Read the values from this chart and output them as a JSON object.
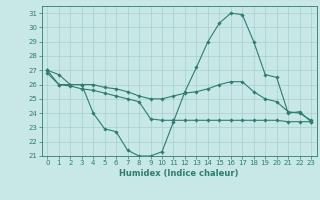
{
  "x": [
    0,
    1,
    2,
    3,
    4,
    5,
    6,
    7,
    8,
    9,
    10,
    11,
    12,
    13,
    14,
    15,
    16,
    17,
    18,
    19,
    20,
    21,
    22,
    23
  ],
  "line1": [
    27.0,
    26.7,
    26.0,
    26.0,
    24.0,
    22.9,
    22.7,
    21.4,
    21.0,
    21.0,
    21.3,
    23.4,
    25.5,
    27.2,
    29.0,
    30.3,
    31.0,
    30.9,
    29.0,
    26.7,
    26.5,
    24.0,
    24.1,
    23.4
  ],
  "line2": [
    27.0,
    26.0,
    26.0,
    26.0,
    26.0,
    25.8,
    25.7,
    25.5,
    25.2,
    25.0,
    25.0,
    25.2,
    25.4,
    25.5,
    25.7,
    26.0,
    26.2,
    26.2,
    25.5,
    25.0,
    24.8,
    24.1,
    24.0,
    23.5
  ],
  "line3": [
    26.8,
    26.0,
    25.9,
    25.7,
    25.6,
    25.4,
    25.2,
    25.0,
    24.8,
    23.6,
    23.5,
    23.5,
    23.5,
    23.5,
    23.5,
    23.5,
    23.5,
    23.5,
    23.5,
    23.5,
    23.5,
    23.4,
    23.4,
    23.4
  ],
  "line_color": "#2e7d6e",
  "bg_color": "#c8e8e8",
  "grid_color": "#a0c8c8",
  "xlabel": "Humidex (Indice chaleur)",
  "xlim": [
    -0.5,
    23.5
  ],
  "ylim": [
    21,
    31.5
  ],
  "yticks": [
    21,
    22,
    23,
    24,
    25,
    26,
    27,
    28,
    29,
    30,
    31
  ],
  "xticks": [
    0,
    1,
    2,
    3,
    4,
    5,
    6,
    7,
    8,
    9,
    10,
    11,
    12,
    13,
    14,
    15,
    16,
    17,
    18,
    19,
    20,
    21,
    22,
    23
  ],
  "tick_fontsize": 5.0,
  "xlabel_fontsize": 6.0,
  "lw": 0.8,
  "ms": 1.8
}
